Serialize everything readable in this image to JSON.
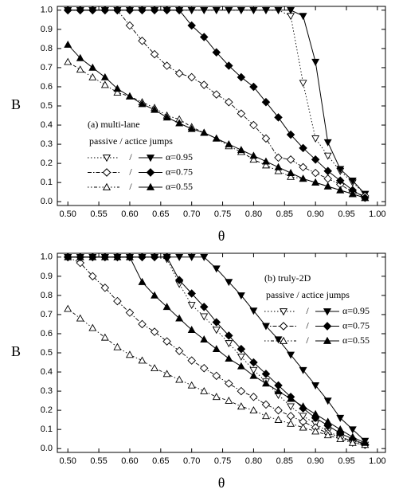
{
  "chart_data": [
    {
      "type": "line",
      "annotation": "(a) multi-lane",
      "legend_title": "passive / actice jumps",
      "legend_separator": "/",
      "xlabel": "θ",
      "ylabel": "B",
      "x": [
        0.5,
        0.52,
        0.54,
        0.56,
        0.58,
        0.6,
        0.62,
        0.64,
        0.66,
        0.68,
        0.7,
        0.72,
        0.74,
        0.76,
        0.78,
        0.8,
        0.82,
        0.84,
        0.86,
        0.88,
        0.9,
        0.92,
        0.94,
        0.96,
        0.98
      ],
      "xlim": [
        0.483,
        1.013
      ],
      "ylim": [
        -0.02,
        1.02
      ],
      "xticks": [
        {
          "value": 0.5,
          "label": "0.50"
        },
        {
          "value": 0.55,
          "label": "0.55"
        },
        {
          "value": 0.6,
          "label": "0.60"
        },
        {
          "value": 0.65,
          "label": "0.65"
        },
        {
          "value": 0.7,
          "label": "0.70"
        },
        {
          "value": 0.75,
          "label": "0.75"
        },
        {
          "value": 0.8,
          "label": "0.80"
        },
        {
          "value": 0.85,
          "label": "0.85"
        },
        {
          "value": 0.9,
          "label": "0.90"
        },
        {
          "value": 0.95,
          "label": "0.95"
        },
        {
          "value": 1.0,
          "label": "1.00"
        }
      ],
      "yticks": [
        {
          "value": 0,
          "label": "0.0"
        },
        {
          "value": 0.1,
          "label": "0.1"
        },
        {
          "value": 0.2,
          "label": "0.2"
        },
        {
          "value": 0.3,
          "label": "0.3"
        },
        {
          "value": 0.4,
          "label": "0.4"
        },
        {
          "value": 0.5,
          "label": "0.5"
        },
        {
          "value": 0.6,
          "label": "0.6"
        },
        {
          "value": 0.7,
          "label": "0.7"
        },
        {
          "value": 0.8,
          "label": "0.8"
        },
        {
          "value": 0.9,
          "label": "0.9"
        },
        {
          "value": 1.0,
          "label": "1.0"
        }
      ],
      "series": [
        {
          "name": "α=0.95",
          "color": "#000000",
          "marker": "triangle-down",
          "passive": [
            1,
            1,
            1,
            1,
            1,
            1,
            1,
            1,
            1,
            1,
            1,
            1,
            1,
            1,
            1,
            1,
            1,
            1,
            0.97,
            0.62,
            0.33,
            0.24,
            0.16,
            0.1,
            0.04
          ],
          "active": [
            1,
            1,
            1,
            1,
            1,
            1,
            1,
            1,
            1,
            1,
            1,
            1,
            1,
            1,
            1,
            1,
            1,
            1,
            1,
            0.97,
            0.73,
            0.31,
            0.17,
            0.11,
            0.04
          ]
        },
        {
          "name": "α=0.75",
          "color": "#000000",
          "marker": "diamond",
          "passive": [
            1,
            1,
            1,
            1,
            1,
            0.92,
            0.84,
            0.77,
            0.71,
            0.67,
            0.65,
            0.61,
            0.56,
            0.52,
            0.46,
            0.4,
            0.33,
            0.23,
            0.22,
            0.18,
            0.15,
            0.12,
            0.09,
            0.05,
            0.03
          ],
          "active": [
            1,
            1,
            1,
            1,
            1,
            1,
            1,
            1,
            1,
            1,
            0.92,
            0.86,
            0.78,
            0.71,
            0.65,
            0.6,
            0.52,
            0.44,
            0.35,
            0.28,
            0.22,
            0.16,
            0.11,
            0.06,
            0.02
          ]
        },
        {
          "name": "α=0.55",
          "color": "#000000",
          "marker": "triangle-up",
          "passive": [
            0.73,
            0.69,
            0.65,
            0.61,
            0.57,
            0.55,
            0.52,
            0.49,
            0.45,
            0.43,
            0.39,
            0.36,
            0.33,
            0.29,
            0.26,
            0.22,
            0.19,
            0.16,
            0.13,
            0.12,
            0.1,
            0.08,
            0.06,
            0.04,
            0.02
          ],
          "active": [
            0.82,
            0.75,
            0.7,
            0.65,
            0.59,
            0.55,
            0.51,
            0.48,
            0.44,
            0.41,
            0.38,
            0.36,
            0.33,
            0.3,
            0.27,
            0.24,
            0.21,
            0.18,
            0.15,
            0.12,
            0.1,
            0.08,
            0.06,
            0.04,
            0.02
          ]
        }
      ]
    },
    {
      "type": "line",
      "annotation": "(b) truly-2D",
      "legend_title": "passive / actice jumps",
      "legend_separator": "/",
      "xlabel": "θ",
      "ylabel": "B",
      "x": [
        0.5,
        0.52,
        0.54,
        0.56,
        0.58,
        0.6,
        0.62,
        0.64,
        0.66,
        0.68,
        0.7,
        0.72,
        0.74,
        0.76,
        0.78,
        0.8,
        0.82,
        0.84,
        0.86,
        0.88,
        0.9,
        0.92,
        0.94,
        0.96,
        0.98
      ],
      "xlim": [
        0.483,
        1.013
      ],
      "ylim": [
        -0.02,
        1.02
      ],
      "xticks": [
        {
          "value": 0.5,
          "label": "0.50"
        },
        {
          "value": 0.55,
          "label": "0.55"
        },
        {
          "value": 0.6,
          "label": "0.60"
        },
        {
          "value": 0.65,
          "label": "0.65"
        },
        {
          "value": 0.7,
          "label": "0.70"
        },
        {
          "value": 0.75,
          "label": "0.75"
        },
        {
          "value": 0.8,
          "label": "0.80"
        },
        {
          "value": 0.85,
          "label": "0.85"
        },
        {
          "value": 0.9,
          "label": "0.90"
        },
        {
          "value": 0.95,
          "label": "0.95"
        },
        {
          "value": 1.0,
          "label": "1.00"
        }
      ],
      "yticks": [
        {
          "value": 0,
          "label": "0.0"
        },
        {
          "value": 0.1,
          "label": "0.1"
        },
        {
          "value": 0.2,
          "label": "0.2"
        },
        {
          "value": 0.3,
          "label": "0.3"
        },
        {
          "value": 0.4,
          "label": "0.4"
        },
        {
          "value": 0.5,
          "label": "0.5"
        },
        {
          "value": 0.6,
          "label": "0.6"
        },
        {
          "value": 0.7,
          "label": "0.7"
        },
        {
          "value": 0.8,
          "label": "0.8"
        },
        {
          "value": 0.9,
          "label": "0.9"
        },
        {
          "value": 1.0,
          "label": "1.0"
        }
      ],
      "series": [
        {
          "name": "α=0.95",
          "color": "#000000",
          "marker": "triangle-down",
          "passive": [
            1,
            1,
            1,
            1,
            1,
            1,
            1,
            1,
            0.99,
            0.86,
            0.75,
            0.69,
            0.62,
            0.55,
            0.48,
            0.41,
            0.35,
            0.28,
            0.22,
            0.17,
            0.13,
            0.09,
            0.06,
            0.03,
            0.02
          ],
          "active": [
            1,
            1,
            1,
            1,
            1,
            1,
            1,
            1,
            1,
            1,
            1,
            1,
            0.94,
            0.87,
            0.8,
            0.72,
            0.64,
            0.57,
            0.49,
            0.41,
            0.33,
            0.25,
            0.16,
            0.1,
            0.04
          ]
        },
        {
          "name": "α=0.75",
          "color": "#000000",
          "marker": "diamond",
          "passive": [
            1,
            0.97,
            0.9,
            0.84,
            0.77,
            0.71,
            0.65,
            0.61,
            0.56,
            0.51,
            0.46,
            0.42,
            0.38,
            0.34,
            0.3,
            0.27,
            0.23,
            0.2,
            0.17,
            0.14,
            0.11,
            0.08,
            0.06,
            0.04,
            0.02
          ],
          "active": [
            1,
            1,
            1,
            1,
            1,
            1,
            1,
            1,
            1,
            0.88,
            0.81,
            0.74,
            0.66,
            0.59,
            0.52,
            0.45,
            0.39,
            0.33,
            0.27,
            0.21,
            0.16,
            0.12,
            0.08,
            0.05,
            0.02
          ]
        },
        {
          "name": "α=0.55",
          "color": "#000000",
          "marker": "triangle-up",
          "passive": [
            0.73,
            0.68,
            0.63,
            0.58,
            0.53,
            0.49,
            0.46,
            0.42,
            0.39,
            0.36,
            0.33,
            0.3,
            0.27,
            0.25,
            0.22,
            0.2,
            0.17,
            0.15,
            0.13,
            0.11,
            0.09,
            0.07,
            0.05,
            0.03,
            0.02
          ],
          "active": [
            1,
            1,
            1,
            1,
            1,
            1,
            0.87,
            0.8,
            0.74,
            0.68,
            0.62,
            0.57,
            0.52,
            0.47,
            0.43,
            0.38,
            0.34,
            0.3,
            0.26,
            0.22,
            0.18,
            0.14,
            0.1,
            0.06,
            0.03
          ]
        }
      ]
    }
  ]
}
